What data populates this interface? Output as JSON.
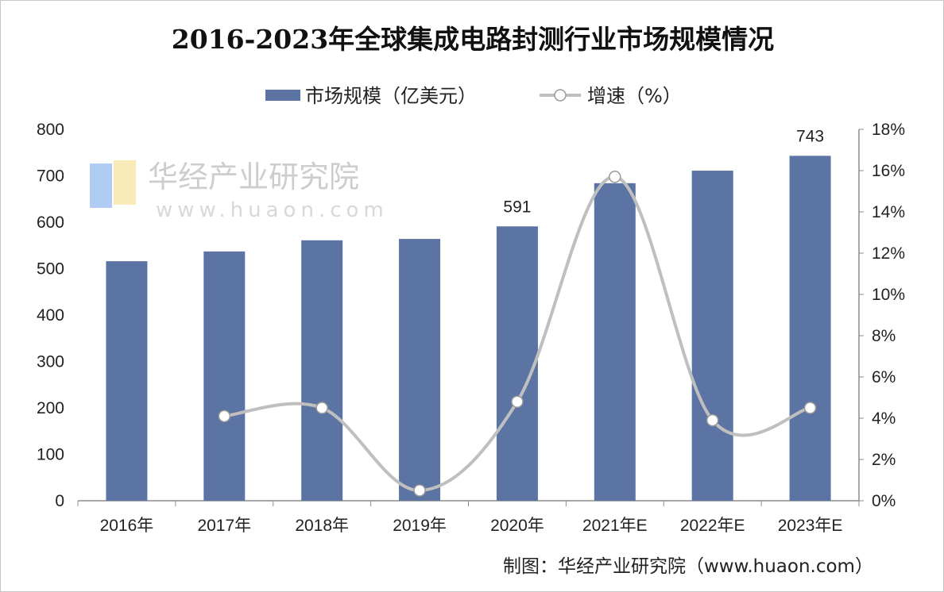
{
  "chart_data": {
    "type": "bar+line",
    "title": "2016-2023年全球集成电路封测行业市场规模情况",
    "categories": [
      "2016年",
      "2017年",
      "2018年",
      "2019年",
      "2020年",
      "2021年E",
      "2022年E",
      "2023年E"
    ],
    "series": [
      {
        "name": "市场规模（亿美元）",
        "type": "bar",
        "axis": "left",
        "color": "#5b74a3",
        "values": [
          516,
          537,
          561,
          564,
          591,
          684,
          711,
          743
        ]
      },
      {
        "name": "增速（%）",
        "type": "line",
        "axis": "right",
        "color": "#bfbfbf",
        "values": [
          null,
          4.1,
          4.5,
          0.5,
          4.8,
          15.7,
          3.9,
          4.5
        ]
      }
    ],
    "data_labels": {
      "4": "591",
      "7": "743"
    },
    "y_left": {
      "min": 0,
      "max": 800,
      "ticks": [
        "0",
        "100",
        "200",
        "300",
        "400",
        "500",
        "600",
        "700",
        "800"
      ]
    },
    "y_right": {
      "min": 0,
      "max": 18,
      "ticks": [
        "0%",
        "2%",
        "4%",
        "6%",
        "8%",
        "10%",
        "12%",
        "14%",
        "16%",
        "18%"
      ]
    },
    "grid": false,
    "legend_position": "top"
  },
  "source": "制图：华经产业研究院（www.huaon.com）",
  "watermark": {
    "text": "华经产业研究院",
    "url": "www.huaon.com"
  }
}
